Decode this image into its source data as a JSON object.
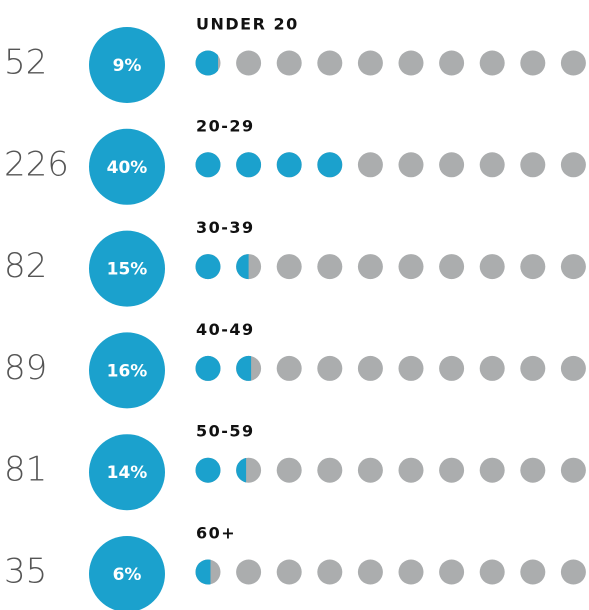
{
  "chart_data": {
    "type": "dots",
    "categories": [
      "UNDER 20",
      "20-29",
      "30-39",
      "40-49",
      "50-59",
      "60+"
    ],
    "counts": [
      52,
      226,
      82,
      89,
      81,
      35
    ],
    "values": [
      9,
      40,
      15,
      16,
      14,
      6
    ],
    "value_labels": [
      "9%",
      "40%",
      "15%",
      "16%",
      "14%",
      "6%"
    ],
    "color": "#1ba1cd",
    "empty_color": "#abadae"
  }
}
